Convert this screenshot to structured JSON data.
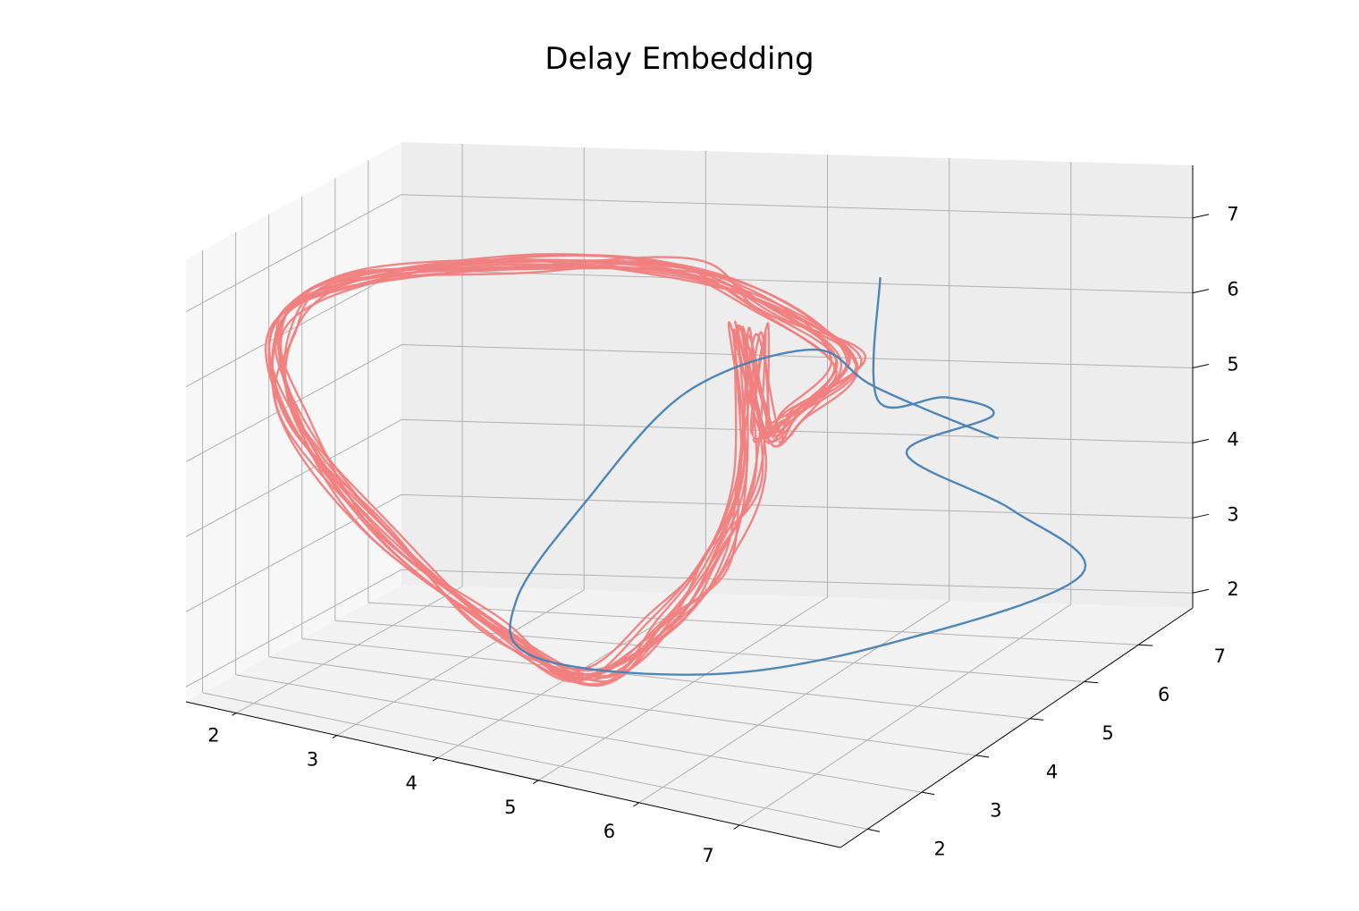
{
  "chart_data": {
    "type": "line",
    "projection": "3d",
    "title": "Delay Embedding",
    "xlabel": "",
    "ylabel": "",
    "zlabel": "",
    "xlim": [
      1.5,
      8.0
    ],
    "ylim": [
      1.5,
      8.0
    ],
    "zlim": [
      1.8,
      7.7
    ],
    "x_ticks": [
      "2",
      "3",
      "4",
      "5",
      "6",
      "7"
    ],
    "y_ticks": [
      "2",
      "3",
      "4",
      "5",
      "6",
      "7"
    ],
    "z_ticks": [
      "2",
      "3",
      "4",
      "5",
      "6",
      "7"
    ],
    "grid": true,
    "colors": {
      "pink": "#f08080",
      "blue": "#4682b4"
    },
    "series": [
      {
        "color": "#f08080",
        "loops": 14,
        "path_xyz": [
          [
            5.5,
            5.4,
            5.0
          ],
          [
            5.4,
            5.2,
            6.5
          ],
          [
            5.4,
            5.3,
            4.6
          ],
          [
            5.2,
            5.0,
            3.5
          ],
          [
            4.9,
            4.5,
            2.8
          ],
          [
            4.5,
            3.9,
            2.2
          ],
          [
            3.9,
            3.3,
            2.9
          ],
          [
            3.0,
            2.6,
            4.2
          ],
          [
            2.3,
            2.3,
            5.6
          ],
          [
            2.0,
            2.8,
            6.6
          ],
          [
            2.3,
            4.0,
            7.0
          ],
          [
            3.2,
            5.7,
            6.9
          ],
          [
            4.1,
            7.0,
            6.5
          ],
          [
            4.8,
            7.3,
            5.9
          ],
          [
            5.6,
            6.9,
            5.4
          ],
          [
            5.6,
            5.6,
            5.2
          ]
        ]
      },
      {
        "color": "#4682b4",
        "path_xyz": [
          [
            7.3,
            5.9,
            5.0
          ],
          [
            6.7,
            4.8,
            6.1
          ],
          [
            6.4,
            4.2,
            6.8
          ],
          [
            5.6,
            3.4,
            6.4
          ],
          [
            4.9,
            2.8,
            5.0
          ],
          [
            4.4,
            2.4,
            3.7
          ],
          [
            4.5,
            2.6,
            2.9
          ],
          [
            5.7,
            3.8,
            2.5
          ],
          [
            6.8,
            5.1,
            2.6
          ],
          [
            7.7,
            6.6,
            2.9
          ],
          [
            7.2,
            6.4,
            3.8
          ],
          [
            6.5,
            5.9,
            4.7
          ],
          [
            6.9,
            6.7,
            4.9
          ],
          [
            6.5,
            6.7,
            5.1
          ],
          [
            6.0,
            6.5,
            5.1
          ],
          [
            5.9,
            6.8,
            6.6
          ]
        ]
      }
    ]
  }
}
